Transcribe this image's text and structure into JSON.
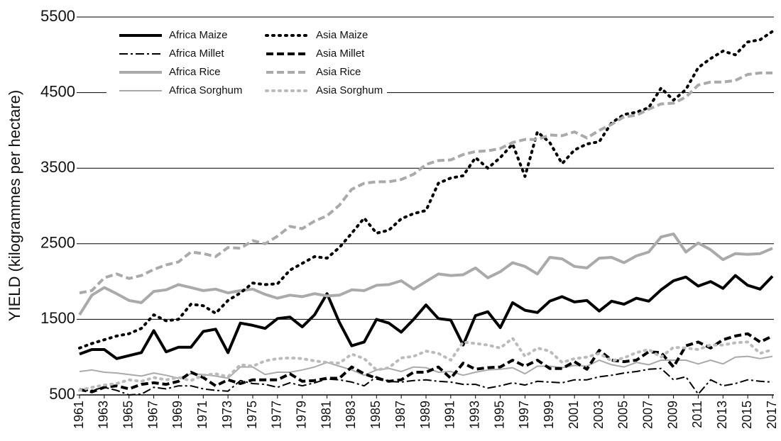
{
  "chart_data": {
    "type": "line",
    "y_label": "YIELD (kilogrammes per hectare)",
    "x": [
      1961,
      1962,
      1963,
      1964,
      1965,
      1966,
      1967,
      1968,
      1969,
      1970,
      1971,
      1972,
      1973,
      1974,
      1975,
      1976,
      1977,
      1978,
      1979,
      1980,
      1981,
      1982,
      1983,
      1984,
      1985,
      1986,
      1987,
      1988,
      1989,
      1990,
      1991,
      1992,
      1993,
      1994,
      1995,
      1996,
      1997,
      1998,
      1999,
      2000,
      2001,
      2002,
      2003,
      2004,
      2005,
      2006,
      2007,
      2008,
      2009,
      2010,
      2011,
      2012,
      2013,
      2014,
      2015,
      2016,
      2017
    ],
    "xlim": [
      1961,
      2017
    ],
    "xticks": [
      1961,
      1963,
      1965,
      1967,
      1969,
      1971,
      1973,
      1975,
      1977,
      1979,
      1981,
      1983,
      1985,
      1987,
      1989,
      1991,
      1993,
      1995,
      1997,
      1999,
      2001,
      2003,
      2005,
      2007,
      2009,
      2011,
      2013,
      2015,
      2017
    ],
    "ylim": [
      500,
      5500
    ],
    "yticks": [
      500,
      1500,
      2500,
      3500,
      4500,
      5500
    ],
    "grid": true,
    "legend": "upper-left",
    "series": [
      {
        "name": "Africa Maize",
        "color": "#000000",
        "style": "solid",
        "weight": "thick",
        "values": [
          1040,
          1100,
          1100,
          980,
          1020,
          1060,
          1350,
          1070,
          1130,
          1130,
          1340,
          1370,
          1060,
          1450,
          1420,
          1380,
          1510,
          1530,
          1400,
          1560,
          1840,
          1460,
          1150,
          1200,
          1500,
          1450,
          1330,
          1500,
          1690,
          1510,
          1490,
          1160,
          1550,
          1600,
          1390,
          1720,
          1620,
          1590,
          1740,
          1800,
          1730,
          1750,
          1610,
          1740,
          1700,
          1780,
          1740,
          1890,
          2010,
          2060,
          1940,
          2000,
          1910,
          2080,
          1950,
          1900,
          2070
        ]
      },
      {
        "name": "Africa Millet",
        "color": "#000000",
        "style": "dashdot",
        "weight": "thin",
        "values": [
          560,
          560,
          600,
          560,
          500,
          510,
          600,
          580,
          620,
          620,
          580,
          560,
          550,
          690,
          650,
          640,
          600,
          660,
          620,
          660,
          710,
          700,
          670,
          620,
          740,
          680,
          670,
          690,
          700,
          680,
          670,
          640,
          640,
          590,
          620,
          660,
          630,
          680,
          670,
          660,
          700,
          700,
          740,
          760,
          790,
          810,
          840,
          850,
          700,
          740,
          510,
          700,
          620,
          650,
          700,
          680,
          670
        ]
      },
      {
        "name": "Africa Rice",
        "color": "#aaaaaa",
        "style": "solid",
        "weight": "thick",
        "values": [
          1560,
          1820,
          1920,
          1840,
          1750,
          1720,
          1870,
          1890,
          1960,
          1920,
          1880,
          1900,
          1850,
          1880,
          1900,
          1830,
          1780,
          1820,
          1800,
          1840,
          1810,
          1820,
          1890,
          1880,
          1950,
          1960,
          2010,
          1900,
          2000,
          2100,
          2080,
          2090,
          2180,
          2050,
          2130,
          2250,
          2200,
          2100,
          2320,
          2300,
          2200,
          2180,
          2310,
          2320,
          2250,
          2340,
          2390,
          2590,
          2630,
          2390,
          2510,
          2420,
          2290,
          2370,
          2360,
          2370,
          2440
        ]
      },
      {
        "name": "Africa Sorghum",
        "color": "#aaaaaa",
        "style": "solid",
        "weight": "thin",
        "values": [
          810,
          830,
          800,
          790,
          770,
          750,
          790,
          760,
          720,
          780,
          770,
          750,
          720,
          870,
          870,
          770,
          800,
          800,
          830,
          870,
          930,
          880,
          830,
          760,
          830,
          850,
          810,
          870,
          860,
          800,
          810,
          760,
          800,
          830,
          840,
          860,
          780,
          880,
          880,
          860,
          890,
          880,
          960,
          900,
          870,
          930,
          900,
          960,
          960,
          960,
          910,
          960,
          910,
          1000,
          1010,
          980,
          1010
        ]
      },
      {
        "name": "Asia Maize",
        "color": "#000000",
        "style": "dotted",
        "weight": "thick",
        "values": [
          1120,
          1180,
          1230,
          1280,
          1310,
          1380,
          1560,
          1480,
          1500,
          1700,
          1680,
          1580,
          1750,
          1850,
          1980,
          1960,
          1970,
          2150,
          2240,
          2330,
          2310,
          2450,
          2640,
          2840,
          2640,
          2680,
          2830,
          2900,
          2940,
          3300,
          3370,
          3400,
          3640,
          3500,
          3640,
          3820,
          3390,
          3980,
          3840,
          3560,
          3740,
          3820,
          3850,
          4100,
          4210,
          4240,
          4300,
          4560,
          4400,
          4540,
          4830,
          4950,
          5050,
          5000,
          5170,
          5200,
          5310
        ]
      },
      {
        "name": "Asia Millet",
        "color": "#000000",
        "style": "dashed",
        "weight": "thick",
        "values": [
          570,
          540,
          600,
          620,
          580,
          640,
          660,
          640,
          680,
          800,
          730,
          620,
          700,
          650,
          700,
          700,
          700,
          780,
          680,
          690,
          720,
          720,
          870,
          780,
          720,
          680,
          700,
          800,
          800,
          870,
          720,
          920,
          840,
          860,
          870,
          960,
          880,
          960,
          850,
          850,
          940,
          840,
          1090,
          960,
          940,
          960,
          1070,
          1060,
          870,
          1150,
          1200,
          1120,
          1230,
          1280,
          1310,
          1200,
          1280
        ]
      },
      {
        "name": "Asia Rice",
        "color": "#aaaaaa",
        "style": "dashed",
        "weight": "thick",
        "values": [
          1850,
          1880,
          2050,
          2100,
          2040,
          2080,
          2160,
          2220,
          2260,
          2390,
          2370,
          2330,
          2450,
          2440,
          2540,
          2500,
          2600,
          2730,
          2700,
          2800,
          2870,
          3010,
          3220,
          3300,
          3320,
          3320,
          3350,
          3420,
          3550,
          3600,
          3610,
          3680,
          3720,
          3730,
          3760,
          3840,
          3880,
          3880,
          3940,
          3930,
          3980,
          3900,
          4000,
          4080,
          4180,
          4200,
          4280,
          4350,
          4360,
          4440,
          4600,
          4640,
          4640,
          4660,
          4740,
          4760,
          4760
        ]
      },
      {
        "name": "Asia Sorghum",
        "color": "#bbbbbb",
        "style": "dotted",
        "weight": "thick",
        "values": [
          560,
          600,
          630,
          650,
          700,
          680,
          730,
          700,
          730,
          690,
          760,
          780,
          740,
          900,
          880,
          950,
          980,
          990,
          980,
          950,
          930,
          920,
          1040,
          980,
          830,
          860,
          990,
          1010,
          1080,
          1050,
          960,
          1200,
          1180,
          1160,
          1120,
          1250,
          1010,
          1120,
          1080,
          930,
          980,
          1000,
          1050,
          950,
          990,
          1060,
          1100,
          1000,
          1130,
          1120,
          1100,
          1160,
          1160,
          1190,
          1200,
          1050,
          1100
        ]
      }
    ]
  }
}
